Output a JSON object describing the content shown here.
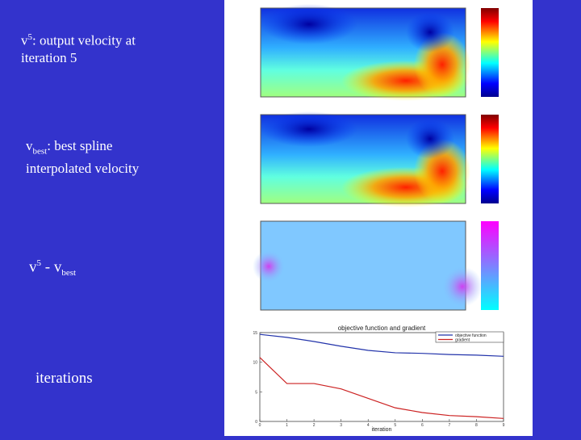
{
  "slide": {
    "label1": {
      "base": "v",
      "sup": "5",
      "rest": ": output velocity at",
      "line2": "iteration 5"
    },
    "label2": {
      "base": "v",
      "sub": "best",
      "rest": ": best spline",
      "line2": "interpolated velocity"
    },
    "label3": {
      "base": "v",
      "sup": "5",
      "mid": " - v",
      "sub": "best"
    },
    "label4": "iterations"
  },
  "chart_data": {
    "type": "line",
    "title": "objective function and gradient",
    "x_label": "iteration",
    "x": [
      0,
      1,
      2,
      3,
      4,
      5,
      6,
      7,
      8,
      9
    ],
    "series": [
      {
        "name": "objective function",
        "color": "#2233aa",
        "values": [
          14.7,
          14.2,
          13.5,
          12.7,
          12.0,
          11.6,
          11.5,
          11.3,
          11.2,
          11.0
        ]
      },
      {
        "name": "gradient",
        "color": "#cc2222",
        "values": [
          10.8,
          6.4,
          6.4,
          5.5,
          3.9,
          2.3,
          1.5,
          1.0,
          0.8,
          0.5
        ]
      }
    ],
    "xlim": [
      0,
      9
    ],
    "xticks": [
      0,
      1,
      2,
      3,
      4,
      5,
      6,
      7,
      8,
      9
    ],
    "ylim": [
      0,
      15
    ],
    "yticks": [
      0,
      5,
      10,
      15
    ]
  }
}
